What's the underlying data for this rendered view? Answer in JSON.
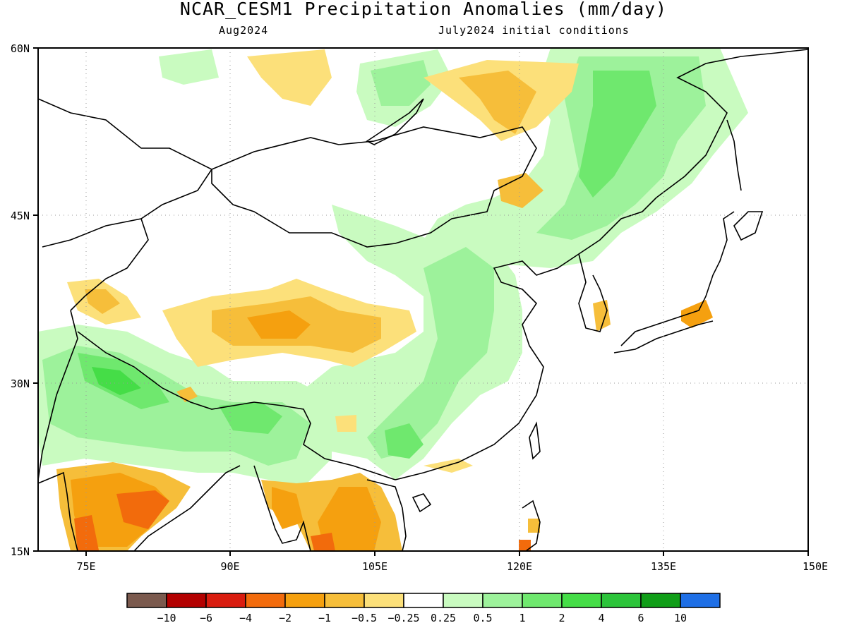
{
  "header": {
    "title": "NCAR_CESM1 Precipitation Anomalies (mm/day)",
    "valid_month": "Aug2024",
    "init": "July2024 initial conditions"
  },
  "map": {
    "region": "East and South Asia",
    "lon_range": [
      70,
      150
    ],
    "lat_range": [
      15,
      60
    ],
    "lon_ticks": [
      "75E",
      "90E",
      "105E",
      "120E",
      "135E",
      "150E"
    ],
    "lat_ticks": [
      "60N",
      "45N",
      "30N",
      "15N"
    ],
    "gridlines": "dotted"
  },
  "legend": {
    "colors": [
      "#7b5a4e",
      "#b30000",
      "#d91c0f",
      "#f26b0c",
      "#f5a00f",
      "#f6be3a",
      "#fce07a",
      "#ffffff",
      "#c9fbc0",
      "#9df29b",
      "#6fe86e",
      "#45dd47",
      "#2cc43a",
      "#109e18",
      "#1e6fe6"
    ],
    "labels": [
      "−10",
      "−6",
      "−4",
      "−2",
      "−1",
      "−0.5",
      "−0.25",
      "0.25",
      "0.5",
      "1",
      "2",
      "4",
      "6",
      "10"
    ]
  }
}
